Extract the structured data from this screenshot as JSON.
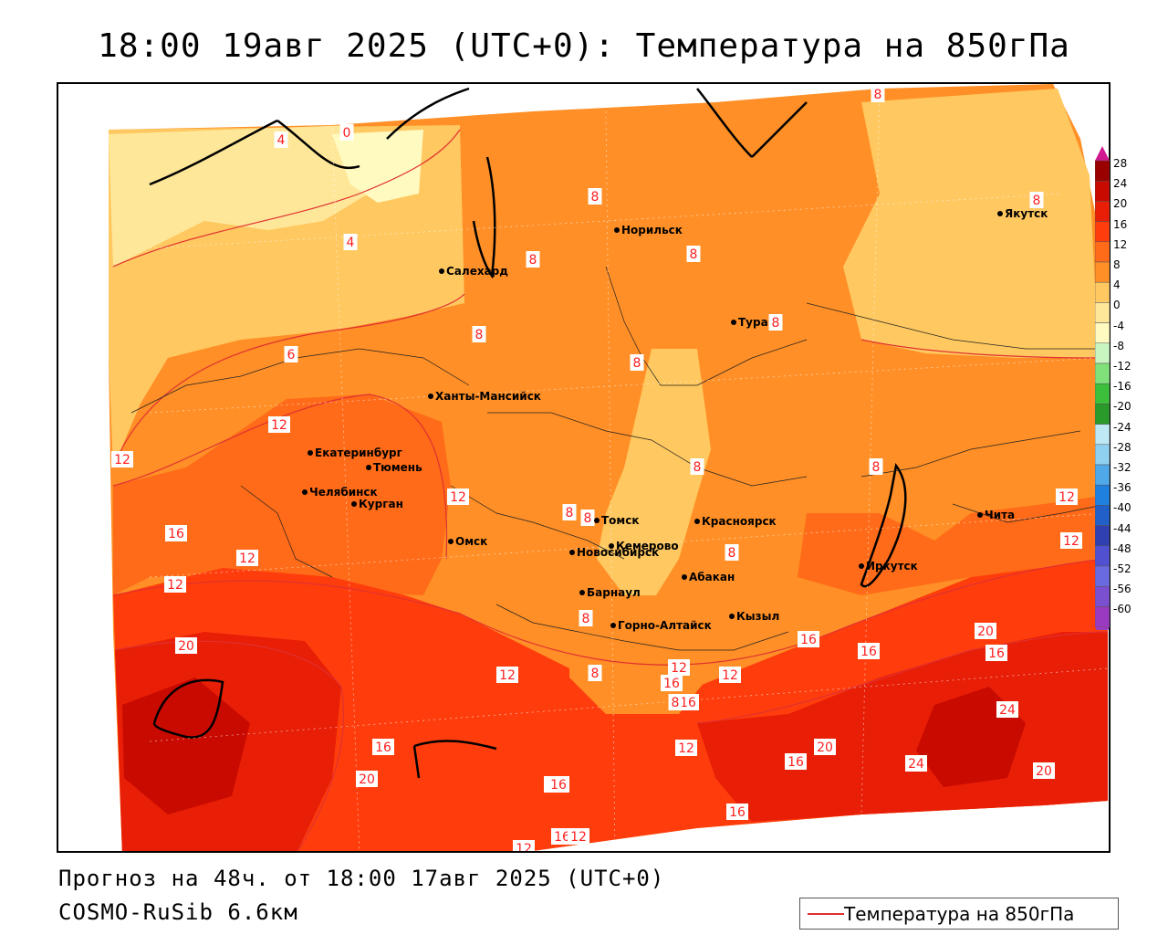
{
  "title": "18:00 19авг 2025 (UTC+0): Температура на 850гПа",
  "forecast_line": "Прогноз на 48ч. от 18:00 17авг 2025 (UTC+0)",
  "model_line": "COSMO-RuSib 6.6км",
  "legend_label": "Температура на 850гПа",
  "colors": {
    "c_lt0": "#fffabf",
    "c_0_4": "#ffe79a",
    "c_4_8": "#ffc860",
    "c_8_12": "#ff8f26",
    "c_12_16": "#ff6b18",
    "c_16_20": "#ff3d0c",
    "c_20_24": "#e81e06",
    "c_ge24": "#c80a00",
    "isoline": "#e03030"
  },
  "colorbar": {
    "labels": [
      "28",
      "24",
      "20",
      "16",
      "12",
      "8",
      "4",
      "0",
      "-4",
      "-8",
      "-12",
      "-16",
      "-20",
      "-24",
      "-28",
      "-32",
      "-36",
      "-40",
      "-44",
      "-48",
      "-52",
      "-56",
      "-60"
    ],
    "colors": [
      "#990000",
      "#c80a00",
      "#e81e06",
      "#ff3d0c",
      "#ff6b18",
      "#ff8f26",
      "#ffc860",
      "#ffe79a",
      "#fffabf",
      "#c8f5c0",
      "#80e07a",
      "#3cc03c",
      "#2a9a2a",
      "#bfe8f5",
      "#8fd0f0",
      "#4fa8e8",
      "#2080e0",
      "#2060c8",
      "#3040b0",
      "#5050d0",
      "#6a6ae0",
      "#7a50d0",
      "#9a3ac0"
    ]
  },
  "cities": [
    {
      "name": "Норильск"
    },
    {
      "name": "Якутск"
    },
    {
      "name": "Салехард"
    },
    {
      "name": "Тура"
    },
    {
      "name": "Ханты-Мансийск"
    },
    {
      "name": "Екатеринбург"
    },
    {
      "name": "Тюмень"
    },
    {
      "name": "Челябинск"
    },
    {
      "name": "Курган"
    },
    {
      "name": "Омск"
    },
    {
      "name": "Новосибирск"
    },
    {
      "name": "Томск"
    },
    {
      "name": "Кемерово"
    },
    {
      "name": "Красноярск"
    },
    {
      "name": "Барнаул"
    },
    {
      "name": "Абакан"
    },
    {
      "name": "Горно-Алтайск"
    },
    {
      "name": "Кызыл"
    },
    {
      "name": "Иркутск"
    },
    {
      "name": "Чита"
    }
  ],
  "contour_labels": [
    "8",
    "0",
    "4",
    "8",
    "8",
    "8",
    "4",
    "8",
    "6",
    "8",
    "8",
    "8",
    "8",
    "12",
    "12",
    "8",
    "8",
    "12",
    "12",
    "16",
    "12",
    "12",
    "8",
    "20",
    "12",
    "8",
    "12",
    "16",
    "16",
    "20",
    "16",
    "12",
    "16",
    "24",
    "20",
    "16",
    "16",
    "12",
    "20",
    "24",
    "20",
    "16",
    "16",
    "16",
    "12",
    "16",
    "12",
    "16",
    "8",
    "8",
    "8",
    "12"
  ]
}
